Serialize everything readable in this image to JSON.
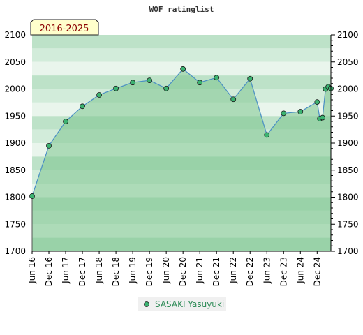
{
  "chart_data": {
    "type": "area",
    "title": "WOF ratinglist",
    "period_label": "2016-2025",
    "xlabel": "",
    "ylabel": "",
    "ylim": [
      1700,
      2100
    ],
    "y_ticks": [
      1700,
      1750,
      1800,
      1850,
      1900,
      1950,
      2000,
      2050,
      2100
    ],
    "x_ticks": [
      {
        "label": "Jun 16",
        "x": 2016.42
      },
      {
        "label": "Dec 16",
        "x": 2016.92
      },
      {
        "label": "Jun 17",
        "x": 2017.42
      },
      {
        "label": "Dec 17",
        "x": 2017.92
      },
      {
        "label": "Jun 18",
        "x": 2018.42
      },
      {
        "label": "Dec 18",
        "x": 2018.92
      },
      {
        "label": "Jun 19",
        "x": 2019.42
      },
      {
        "label": "Dec 19",
        "x": 2019.92
      },
      {
        "label": "Jun 20",
        "x": 2020.42
      },
      {
        "label": "Dec 20",
        "x": 2020.92
      },
      {
        "label": "Jun 21",
        "x": 2021.42
      },
      {
        "label": "Dec 21",
        "x": 2021.92
      },
      {
        "label": "Jun 22",
        "x": 2022.42
      },
      {
        "label": "Dec 22",
        "x": 2022.92
      },
      {
        "label": "Jun 23",
        "x": 2023.42
      },
      {
        "label": "Dec 23",
        "x": 2023.92
      },
      {
        "label": "Jun 24",
        "x": 2024.42
      },
      {
        "label": "Dec 24",
        "x": 2024.92
      }
    ],
    "xlim": [
      2016.42,
      2025.33
    ],
    "series": [
      {
        "name": "SASAKI Yasuyuki",
        "points": [
          {
            "x": 2016.42,
            "y": 1802
          },
          {
            "x": 2016.92,
            "y": 1895
          },
          {
            "x": 2017.42,
            "y": 1940
          },
          {
            "x": 2017.92,
            "y": 1968
          },
          {
            "x": 2018.42,
            "y": 1989
          },
          {
            "x": 2018.92,
            "y": 2001
          },
          {
            "x": 2019.42,
            "y": 2012
          },
          {
            "x": 2019.92,
            "y": 2016
          },
          {
            "x": 2020.42,
            "y": 2001
          },
          {
            "x": 2020.92,
            "y": 2037
          },
          {
            "x": 2021.42,
            "y": 2012
          },
          {
            "x": 2021.92,
            "y": 2021
          },
          {
            "x": 2022.42,
            "y": 1981
          },
          {
            "x": 2022.92,
            "y": 2019
          },
          {
            "x": 2023.42,
            "y": 1915
          },
          {
            "x": 2023.92,
            "y": 1955
          },
          {
            "x": 2024.42,
            "y": 1958
          },
          {
            "x": 2024.92,
            "y": 1976
          },
          {
            "x": 2025.0,
            "y": 1945
          },
          {
            "x": 2025.08,
            "y": 1947
          },
          {
            "x": 2025.17,
            "y": 2000
          },
          {
            "x": 2025.25,
            "y": 2004
          },
          {
            "x": 2025.33,
            "y": 2001
          }
        ]
      }
    ],
    "legend_position": "bottom-center",
    "grid": true,
    "colors": {
      "band_light": "#e9f5ec",
      "band_mid": "#d2ecda",
      "band_dark": "#bde2c8",
      "fill": "#7cc48e",
      "fill_opacity": 0.55,
      "line": "#4a8fc4",
      "marker": "#3cb371",
      "marker_stroke": "#1a1a1a",
      "period_bg": "#ffffcc",
      "legend_text": "#2e8b57"
    }
  }
}
